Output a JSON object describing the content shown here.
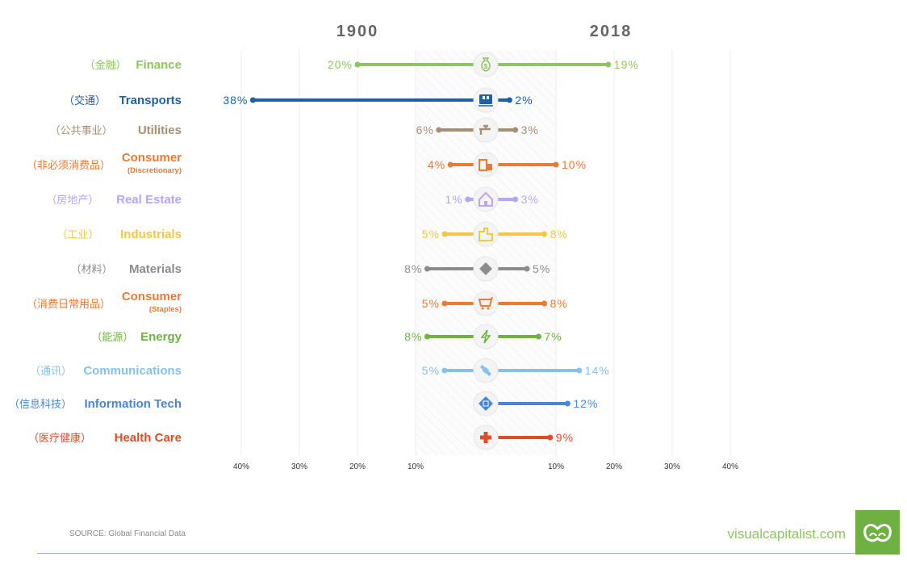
{
  "chart_data": {
    "type": "dumbbell",
    "left_header": "1900",
    "right_header": "2018",
    "xlim": [
      0,
      40
    ],
    "left_ticks": [
      "40%",
      "30%",
      "20%",
      "10%"
    ],
    "right_ticks": [
      "10%",
      "20%",
      "30%",
      "40%"
    ],
    "tick_values": [
      40,
      30,
      20,
      10
    ],
    "grid": true,
    "unit": "%",
    "series": [
      {
        "name": "Finance",
        "zh": "（金融）",
        "sub": "",
        "icon": "money-bag-icon",
        "color": "#8dc563",
        "y1900": 20,
        "y2018": 19
      },
      {
        "name": "Transports",
        "zh": "（交通）",
        "sub": "",
        "icon": "train-icon",
        "color": "#1f5fa8",
        "y1900": 38,
        "y2018": 2
      },
      {
        "name": "Utilities",
        "zh": "（公共事业）",
        "sub": "",
        "icon": "faucet-icon",
        "color": "#a88f72",
        "y1900": 6,
        "y2018": 3
      },
      {
        "name": "Consumer",
        "zh": "（非必须消费品）",
        "sub": "(Discretionary)",
        "icon": "shopping-bags-icon",
        "color": "#ea7a35",
        "y1900": 4,
        "y2018": 10
      },
      {
        "name": "Real Estate",
        "zh": "（房地产）",
        "sub": "",
        "icon": "house-icon",
        "color": "#b7a5f5",
        "y1900": 1,
        "y2018": 3
      },
      {
        "name": "Industrials",
        "zh": "（工业）",
        "sub": "",
        "icon": "factory-icon",
        "color": "#f2c744",
        "y1900": 5,
        "y2018": 8
      },
      {
        "name": "Materials",
        "zh": "（材料）",
        "sub": "",
        "icon": "diamond-icon",
        "color": "#8c8c8c",
        "y1900": 8,
        "y2018": 5
      },
      {
        "name": "Consumer",
        "zh": "（消费日常用品）",
        "sub": "(Staples)",
        "icon": "shopping-cart-icon",
        "color": "#ea7a35",
        "y1900": 5,
        "y2018": 8
      },
      {
        "name": "Energy",
        "zh": "（能源）",
        "sub": "",
        "icon": "lightning-icon",
        "color": "#6db33f",
        "y1900": 8,
        "y2018": 7
      },
      {
        "name": "Communications",
        "zh": "（通讯）",
        "sub": "",
        "icon": "satellite-icon",
        "color": "#85c1f0",
        "y1900": 5,
        "y2018": 14
      },
      {
        "name": "Information Tech",
        "zh": "（信息科技）",
        "sub": "",
        "icon": "chip-icon",
        "color": "#4a86d6",
        "y1900": null,
        "y2018": 12
      },
      {
        "name": "Health Care",
        "zh": "（医疗健康）",
        "sub": "",
        "icon": "medical-cross-icon",
        "color": "#d94f2a",
        "y1900": null,
        "y2018": 9
      }
    ]
  },
  "footer": {
    "source": "SOURCE: Global Financial Data",
    "brand": "visualcapitalist.com",
    "brand_color": "#8dc563"
  }
}
